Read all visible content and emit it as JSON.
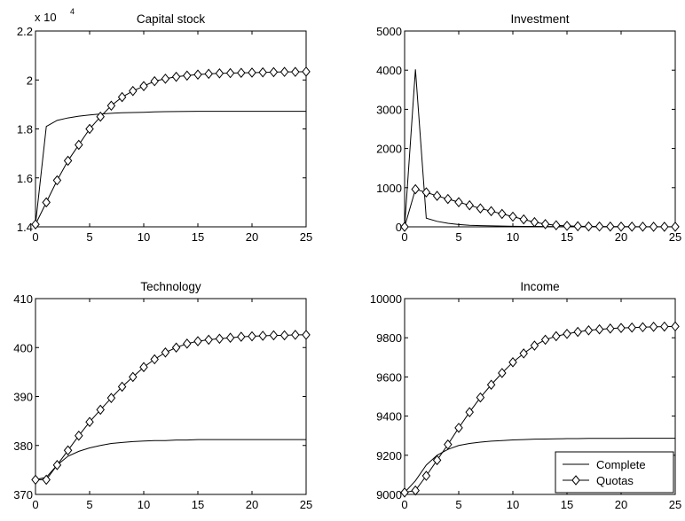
{
  "chart_data": [
    {
      "type": "line",
      "title": "Capital stock",
      "multiplier": "x 10",
      "multiplier_exp": "4",
      "x": [
        0,
        1,
        2,
        3,
        4,
        5,
        6,
        7,
        8,
        9,
        10,
        11,
        12,
        13,
        14,
        15,
        16,
        17,
        18,
        19,
        20,
        21,
        22,
        23,
        24,
        25
      ],
      "xlim": [
        0,
        25
      ],
      "ylim": [
        1.4,
        2.2
      ],
      "xticks": [
        0,
        5,
        10,
        15,
        20,
        25
      ],
      "yticks": [
        1.4,
        1.6,
        1.8,
        2,
        2.2
      ],
      "ytick_labels": [
        "1.4",
        "1.6",
        "1.8",
        "2",
        "2.2"
      ],
      "series": [
        {
          "name": "Complete",
          "marker": "none",
          "values": [
            1.41,
            1.81,
            1.835,
            1.845,
            1.852,
            1.857,
            1.861,
            1.864,
            1.866,
            1.867,
            1.868,
            1.8695,
            1.8705,
            1.871,
            1.8715,
            1.872,
            1.872,
            1.872,
            1.872,
            1.872,
            1.872,
            1.872,
            1.872,
            1.872,
            1.872,
            1.872
          ]
        },
        {
          "name": "Quotas",
          "marker": "diamond",
          "values": [
            1.41,
            1.5,
            1.59,
            1.67,
            1.735,
            1.8,
            1.85,
            1.895,
            1.93,
            1.955,
            1.975,
            1.995,
            2.005,
            2.013,
            2.018,
            2.022,
            2.025,
            2.027,
            2.028,
            2.029,
            2.03,
            2.031,
            2.032,
            2.033,
            2.033,
            2.034
          ]
        }
      ]
    },
    {
      "type": "line",
      "title": "Investment",
      "x": [
        0,
        1,
        2,
        3,
        4,
        5,
        6,
        7,
        8,
        9,
        10,
        11,
        12,
        13,
        14,
        15,
        16,
        17,
        18,
        19,
        20,
        21,
        22,
        23,
        24,
        25
      ],
      "xlim": [
        0,
        25
      ],
      "ylim": [
        0,
        5000
      ],
      "xticks": [
        0,
        5,
        10,
        15,
        20,
        25
      ],
      "yticks": [
        0,
        1000,
        2000,
        3000,
        4000,
        5000
      ],
      "ytick_labels": [
        "0",
        "1000",
        "2000",
        "3000",
        "4000",
        "5000"
      ],
      "series": [
        {
          "name": "Complete",
          "marker": "none",
          "values": [
            0,
            4020,
            220,
            140,
            90,
            60,
            40,
            30,
            25,
            20,
            15,
            12,
            10,
            8,
            6,
            5,
            4,
            3,
            3,
            2,
            2,
            2,
            1,
            1,
            1,
            1
          ]
        },
        {
          "name": "Quotas",
          "marker": "diamond",
          "values": [
            0,
            960,
            880,
            790,
            710,
            630,
            550,
            470,
            400,
            330,
            260,
            190,
            120,
            70,
            40,
            25,
            15,
            10,
            8,
            6,
            5,
            4,
            3,
            2,
            2,
            2
          ]
        }
      ]
    },
    {
      "type": "line",
      "title": "Technology",
      "x": [
        0,
        1,
        2,
        3,
        4,
        5,
        6,
        7,
        8,
        9,
        10,
        11,
        12,
        13,
        14,
        15,
        16,
        17,
        18,
        19,
        20,
        21,
        22,
        23,
        24,
        25
      ],
      "xlim": [
        0,
        25
      ],
      "ylim": [
        370,
        410
      ],
      "xticks": [
        0,
        5,
        10,
        15,
        20,
        25
      ],
      "yticks": [
        370,
        380,
        390,
        400,
        410
      ],
      "ytick_labels": [
        "370",
        "380",
        "390",
        "400",
        "410"
      ],
      "series": [
        {
          "name": "Complete",
          "marker": "none",
          "values": [
            373,
            373.5,
            376,
            377.8,
            378.8,
            379.5,
            380,
            380.4,
            380.6,
            380.8,
            380.9,
            381,
            381,
            381.1,
            381.1,
            381.2,
            381.2,
            381.2,
            381.2,
            381.2,
            381.2,
            381.2,
            381.2,
            381.2,
            381.2,
            381.2
          ]
        },
        {
          "name": "Quotas",
          "marker": "diamond",
          "values": [
            373,
            373,
            376,
            379,
            382,
            384.8,
            387.3,
            389.7,
            392,
            394,
            396,
            397.6,
            399,
            400,
            400.8,
            401.3,
            401.6,
            401.8,
            402,
            402.2,
            402.3,
            402.4,
            402.5,
            402.5,
            402.6,
            402.6
          ]
        }
      ]
    },
    {
      "type": "line",
      "title": "Income",
      "x": [
        0,
        1,
        2,
        3,
        4,
        5,
        6,
        7,
        8,
        9,
        10,
        11,
        12,
        13,
        14,
        15,
        16,
        17,
        18,
        19,
        20,
        21,
        22,
        23,
        24,
        25
      ],
      "xlim": [
        0,
        25
      ],
      "ylim": [
        9000,
        10000
      ],
      "xticks": [
        0,
        5,
        10,
        15,
        20,
        25
      ],
      "yticks": [
        9000,
        9200,
        9400,
        9600,
        9800,
        10000
      ],
      "ytick_labels": [
        "9000",
        "9200",
        "9400",
        "9600",
        "9800",
        "10000"
      ],
      "legend": {
        "position": "bottom-right",
        "entries": [
          "Complete",
          "Quotas"
        ]
      },
      "series": [
        {
          "name": "Complete",
          "marker": "none",
          "values": [
            9010,
            9070,
            9150,
            9200,
            9230,
            9250,
            9260,
            9267,
            9272,
            9275,
            9278,
            9280,
            9282,
            9283,
            9284,
            9285,
            9285,
            9286,
            9286,
            9286,
            9286,
            9287,
            9287,
            9287,
            9287,
            9287
          ]
        },
        {
          "name": "Quotas",
          "marker": "diamond",
          "values": [
            9010,
            9020,
            9095,
            9175,
            9255,
            9340,
            9420,
            9495,
            9560,
            9620,
            9675,
            9720,
            9760,
            9790,
            9808,
            9820,
            9830,
            9838,
            9843,
            9847,
            9850,
            9852,
            9854,
            9856,
            9857,
            9858
          ]
        }
      ]
    }
  ]
}
